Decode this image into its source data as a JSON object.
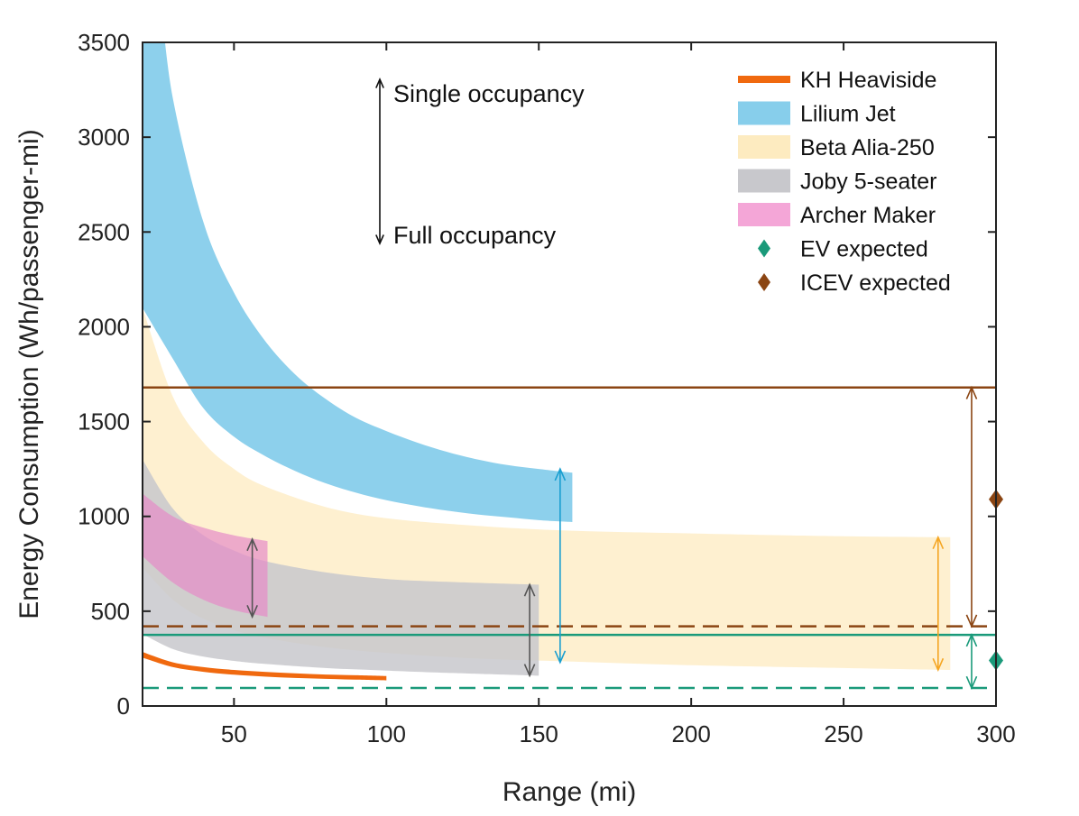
{
  "chart_data": {
    "type": "area",
    "title": "",
    "xlabel": "Range (mi)",
    "ylabel": "Energy Consumption (Wh/passenger-mi)",
    "xlim": [
      20,
      300
    ],
    "ylim": [
      0,
      3500
    ],
    "xticks": [
      50,
      100,
      150,
      200,
      250,
      300
    ],
    "yticks": [
      0,
      500,
      1000,
      1500,
      2000,
      2500,
      3000,
      3500
    ],
    "grid": false,
    "legend_position": "top-right",
    "series": [
      {
        "name": "KH Heaviside",
        "kind": "band",
        "color": "#f0690f",
        "opacity": 1.0,
        "x_range": [
          20,
          100
        ],
        "upper": [
          [
            20,
            285
          ],
          [
            30,
            230
          ],
          [
            40,
            205
          ],
          [
            50,
            190
          ],
          [
            60,
            180
          ],
          [
            70,
            172
          ],
          [
            80,
            166
          ],
          [
            90,
            162
          ],
          [
            100,
            158
          ]
        ],
        "lower": [
          [
            20,
            255
          ],
          [
            30,
            205
          ],
          [
            40,
            180
          ],
          [
            50,
            165
          ],
          [
            60,
            155
          ],
          [
            70,
            148
          ],
          [
            80,
            143
          ],
          [
            90,
            139
          ],
          [
            100,
            135
          ]
        ]
      },
      {
        "name": "Lilium Jet",
        "kind": "band",
        "color": "#87ceeb",
        "opacity": 0.95,
        "x_range": [
          20,
          161
        ],
        "upper": [
          [
            20,
            4000
          ],
          [
            25,
            3800
          ],
          [
            30,
            3200
          ],
          [
            40,
            2550
          ],
          [
            50,
            2180
          ],
          [
            60,
            1930
          ],
          [
            70,
            1750
          ],
          [
            80,
            1620
          ],
          [
            90,
            1520
          ],
          [
            100,
            1450
          ],
          [
            110,
            1390
          ],
          [
            120,
            1340
          ],
          [
            130,
            1300
          ],
          [
            140,
            1270
          ],
          [
            150,
            1250
          ],
          [
            161,
            1230
          ]
        ],
        "lower": [
          [
            20,
            2100
          ],
          [
            30,
            1830
          ],
          [
            40,
            1570
          ],
          [
            50,
            1420
          ],
          [
            60,
            1320
          ],
          [
            70,
            1240
          ],
          [
            80,
            1175
          ],
          [
            90,
            1125
          ],
          [
            100,
            1085
          ],
          [
            110,
            1055
          ],
          [
            120,
            1030
          ],
          [
            130,
            1010
          ],
          [
            140,
            995
          ],
          [
            150,
            980
          ],
          [
            161,
            970
          ]
        ]
      },
      {
        "name": "Beta Alia-250",
        "kind": "band",
        "color": "#fdebc0",
        "opacity": 0.75,
        "x_range": [
          20,
          285
        ],
        "upper": [
          [
            20,
            2100
          ],
          [
            30,
            1630
          ],
          [
            40,
            1390
          ],
          [
            50,
            1250
          ],
          [
            60,
            1160
          ],
          [
            80,
            1050
          ],
          [
            100,
            990
          ],
          [
            130,
            950
          ],
          [
            160,
            925
          ],
          [
            200,
            910
          ],
          [
            250,
            895
          ],
          [
            285,
            890
          ]
        ],
        "lower": [
          [
            20,
            730
          ],
          [
            30,
            560
          ],
          [
            40,
            460
          ],
          [
            50,
            400
          ],
          [
            60,
            360
          ],
          [
            80,
            310
          ],
          [
            100,
            280
          ],
          [
            130,
            250
          ],
          [
            160,
            235
          ],
          [
            200,
            215
          ],
          [
            250,
            200
          ],
          [
            285,
            190
          ]
        ]
      },
      {
        "name": "Joby 5-seater",
        "kind": "band",
        "color": "#c8c8cc",
        "opacity": 0.85,
        "x_range": [
          20,
          150
        ],
        "upper": [
          [
            20,
            1300
          ],
          [
            30,
            1040
          ],
          [
            40,
            900
          ],
          [
            50,
            820
          ],
          [
            60,
            765
          ],
          [
            80,
            705
          ],
          [
            100,
            670
          ],
          [
            120,
            655
          ],
          [
            150,
            640
          ]
        ],
        "lower": [
          [
            20,
            380
          ],
          [
            30,
            300
          ],
          [
            40,
            260
          ],
          [
            50,
            238
          ],
          [
            60,
            222
          ],
          [
            80,
            200
          ],
          [
            100,
            187
          ],
          [
            120,
            175
          ],
          [
            150,
            160
          ]
        ]
      },
      {
        "name": "Archer Maker",
        "kind": "band",
        "color": "#e58cc8",
        "opacity": 0.7,
        "x_range": [
          20,
          61
        ],
        "upper": [
          [
            20,
            1120
          ],
          [
            30,
            1000
          ],
          [
            40,
            940
          ],
          [
            50,
            900
          ],
          [
            61,
            870
          ]
        ],
        "lower": [
          [
            20,
            790
          ],
          [
            30,
            650
          ],
          [
            40,
            560
          ],
          [
            50,
            505
          ],
          [
            61,
            470
          ]
        ]
      }
    ],
    "reference_lines": [
      {
        "name": "ICEV single occupancy",
        "y": 1680,
        "color": "#8b4513",
        "style": "solid"
      },
      {
        "name": "ICEV full occupancy",
        "y": 420,
        "color": "#8b4513",
        "style": "dashed"
      },
      {
        "name": "EV single occupancy",
        "y": 375,
        "color": "#1a9a7a",
        "style": "solid"
      },
      {
        "name": "EV full occupancy",
        "y": 95,
        "color": "#1a9a7a",
        "style": "dashed"
      }
    ],
    "range_arrows": [
      {
        "x": 56,
        "y_low": 470,
        "y_high": 880,
        "color": "#555555"
      },
      {
        "x": 147,
        "y_low": 160,
        "y_high": 640,
        "color": "#555555"
      },
      {
        "x": 157,
        "y_low": 230,
        "y_high": 1250,
        "color": "#1a9fd0"
      },
      {
        "x": 281,
        "y_low": 190,
        "y_high": 890,
        "color": "#f5a623"
      },
      {
        "x": 292,
        "y_low": 420,
        "y_high": 1680,
        "color": "#8b4513"
      },
      {
        "x": 292,
        "y_low": 95,
        "y_high": 375,
        "color": "#1a9a7a"
      }
    ],
    "markers": [
      {
        "name": "EV expected",
        "x": 300,
        "y": 240,
        "shape": "diamond",
        "color": "#1a9a7a"
      },
      {
        "name": "ICEV expected",
        "x": 300,
        "y": 1090,
        "shape": "diamond",
        "color": "#8b4513"
      }
    ],
    "annotations": [
      {
        "text": "Single occupancy",
        "arrow": "up"
      },
      {
        "text": "Full occupancy",
        "arrow": "down"
      }
    ],
    "legend": [
      {
        "label": "KH Heaviside",
        "kind": "line",
        "color": "#f0690f"
      },
      {
        "label": "Lilium Jet",
        "kind": "patch",
        "color": "#87ceeb"
      },
      {
        "label": "Beta Alia-250",
        "kind": "patch",
        "color": "#fdebc0"
      },
      {
        "label": "Joby 5-seater",
        "kind": "patch",
        "color": "#c8c8cc"
      },
      {
        "label": "Archer Maker",
        "kind": "patch",
        "color": "#f4a6d7"
      },
      {
        "label": "EV expected",
        "kind": "diamond",
        "color": "#1a9a7a"
      },
      {
        "label": "ICEV expected",
        "kind": "diamond",
        "color": "#8b4513"
      }
    ]
  }
}
